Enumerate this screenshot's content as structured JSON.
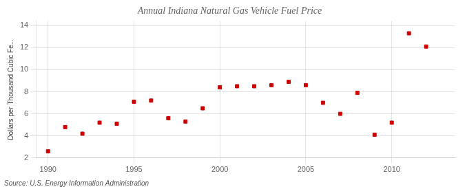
{
  "chart_data": {
    "type": "scatter",
    "title": "Annual Indiana Natural Gas Vehicle Fuel Price",
    "y_label": "Dollars per Thousand Cubic Fe...",
    "annotations": [
      "Source: U.S. Energy Information Administration"
    ],
    "x": [
      1990,
      1991,
      1992,
      1993,
      1994,
      1995,
      1996,
      1997,
      1998,
      1999,
      2000,
      2001,
      2002,
      2003,
      2004,
      2005,
      2006,
      2007,
      2008,
      2009,
      2010,
      2011,
      2012
    ],
    "values": [
      2.6,
      4.8,
      4.2,
      5.2,
      5.1,
      7.1,
      7.2,
      5.6,
      5.3,
      6.5,
      8.4,
      8.5,
      8.5,
      8.6,
      8.9,
      8.6,
      7.0,
      6.0,
      7.9,
      4.1,
      5.2,
      13.3,
      12.1
    ],
    "color": "#cc0000",
    "marker": "square",
    "xlim": [
      1989.3,
      2013.7
    ],
    "xticks": [
      1990,
      1995,
      2000,
      2005,
      2010
    ],
    "ylim": [
      2,
      14.4
    ],
    "yticks": [
      2,
      4,
      6,
      8,
      10,
      12,
      14
    ],
    "grid": true
  }
}
